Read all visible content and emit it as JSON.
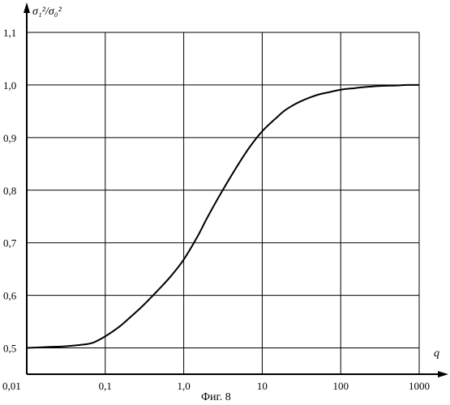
{
  "chart_data": {
    "type": "line",
    "title": "",
    "xlabel": "q",
    "ylabel": "σ₁²/σ₀²",
    "x_scale": "log",
    "xlim": [
      0.01,
      1000
    ],
    "ylim": [
      0.45,
      1.1
    ],
    "grid": true,
    "x_ticks": [
      0.01,
      0.1,
      1.0,
      10,
      100,
      1000
    ],
    "x_tick_labels": [
      "0,01",
      "0,1",
      "1,0",
      "10",
      "100",
      "1000"
    ],
    "y_ticks": [
      0.5,
      0.6,
      0.7,
      0.8,
      0.9,
      1.0,
      1.1
    ],
    "y_tick_labels": [
      "0,5",
      "0,6",
      "0,7",
      "0,8",
      "0,9",
      "1,0",
      "1,1"
    ],
    "series": [
      {
        "x": [
          0.01,
          0.02,
          0.03,
          0.05,
          0.07,
          0.1,
          0.15,
          0.2,
          0.3,
          0.5,
          0.7,
          1.0,
          1.5,
          2.0,
          3.0,
          5.0,
          7.0,
          10,
          15,
          20,
          30,
          50,
          70,
          100,
          150,
          200,
          300,
          500,
          700,
          1000
        ],
        "y": [
          0.5,
          0.502,
          0.503,
          0.506,
          0.51,
          0.522,
          0.54,
          0.556,
          0.58,
          0.614,
          0.638,
          0.668,
          0.712,
          0.748,
          0.795,
          0.85,
          0.883,
          0.912,
          0.937,
          0.953,
          0.968,
          0.981,
          0.986,
          0.991,
          0.994,
          0.996,
          0.998,
          0.999,
          1.0,
          1.0
        ]
      }
    ]
  },
  "caption": "Фиг. 8"
}
